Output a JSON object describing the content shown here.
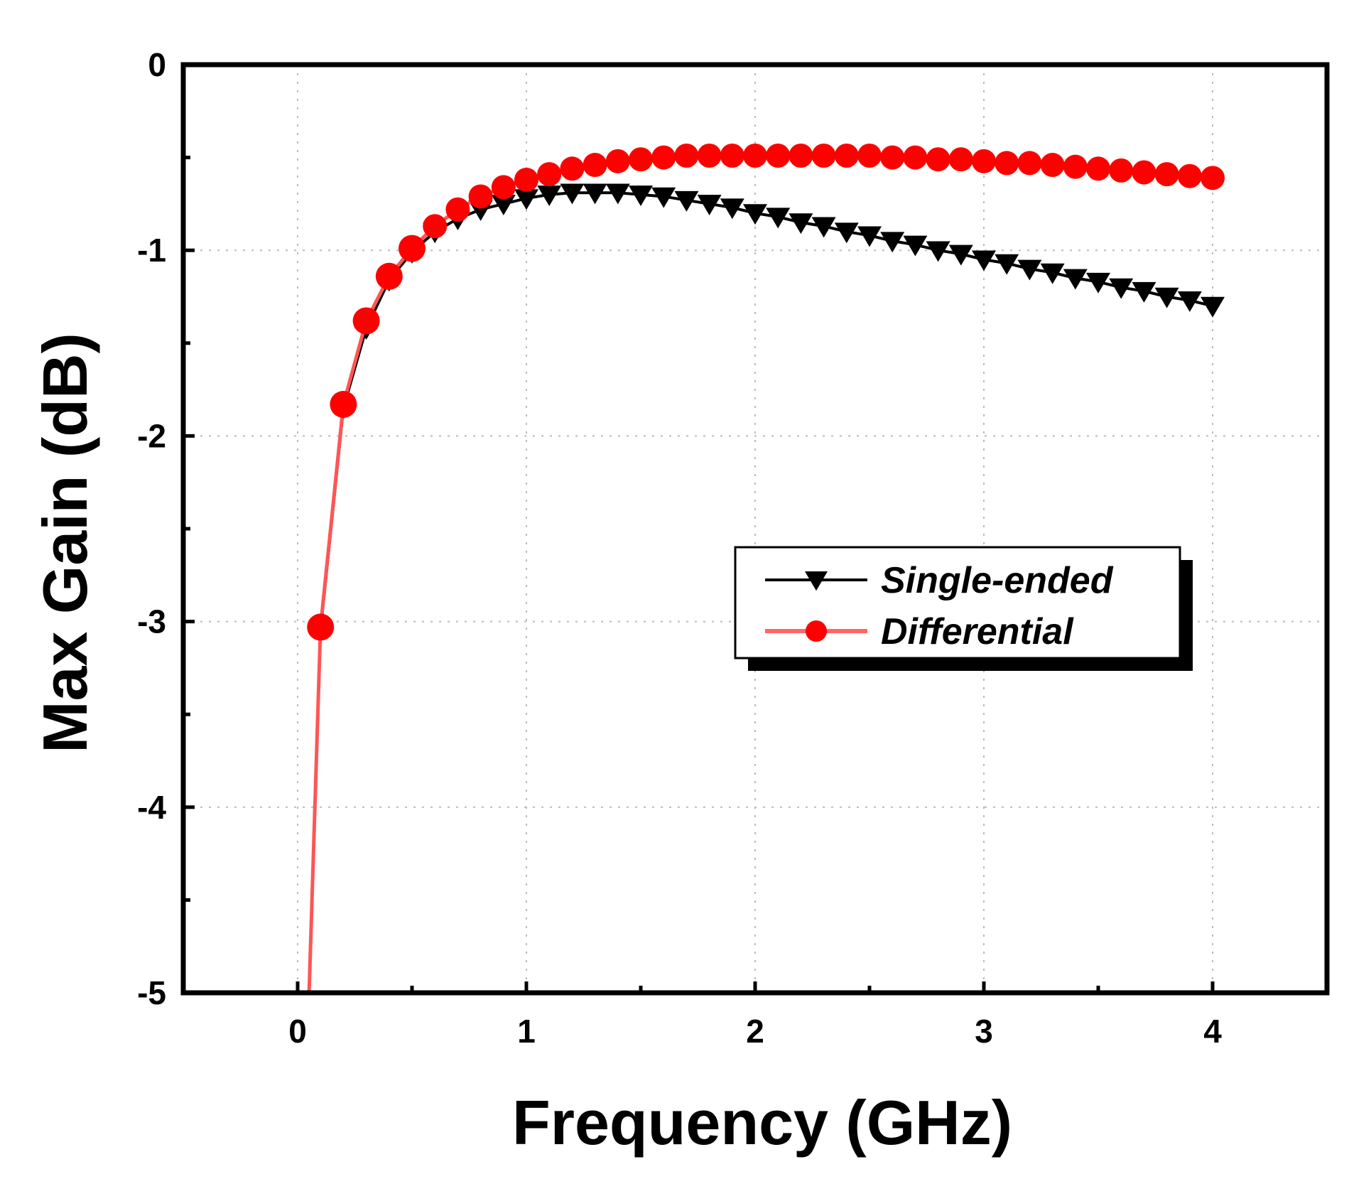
{
  "chart_data": {
    "type": "line",
    "xlabel": "Frequency (GHz)",
    "ylabel": "Max Gain (dB)",
    "xlim": [
      -0.5,
      4.5
    ],
    "ylim": [
      -5,
      0
    ],
    "x_ticks": [
      0,
      1,
      2,
      3,
      4
    ],
    "y_ticks": [
      0,
      -1,
      -2,
      -3,
      -4,
      -5
    ],
    "grid": true,
    "legend_position": "center-right",
    "series": [
      {
        "name": "Single-ended",
        "color": "#000000",
        "marker": "triangle-down",
        "x": [
          0.1,
          0.2,
          0.3,
          0.4,
          0.5,
          0.6,
          0.7,
          0.8,
          0.9,
          1.0,
          1.1,
          1.2,
          1.3,
          1.4,
          1.5,
          1.6,
          1.7,
          1.8,
          1.9,
          2.0,
          2.1,
          2.2,
          2.3,
          2.4,
          2.5,
          2.6,
          2.7,
          2.8,
          2.9,
          3.0,
          3.1,
          3.2,
          3.3,
          3.4,
          3.5,
          3.6,
          3.7,
          3.8,
          3.9,
          4.0
        ],
        "y": [
          -3.05,
          -1.85,
          -1.42,
          -1.16,
          -1.01,
          -0.9,
          -0.83,
          -0.78,
          -0.75,
          -0.72,
          -0.7,
          -0.69,
          -0.69,
          -0.69,
          -0.7,
          -0.71,
          -0.73,
          -0.75,
          -0.77,
          -0.8,
          -0.82,
          -0.85,
          -0.87,
          -0.9,
          -0.92,
          -0.95,
          -0.97,
          -1.0,
          -1.02,
          -1.05,
          -1.07,
          -1.1,
          -1.12,
          -1.15,
          -1.17,
          -1.2,
          -1.22,
          -1.25,
          -1.27,
          -1.3
        ]
      },
      {
        "name": "Differential",
        "color": "#ff0000",
        "marker": "circle",
        "x": [
          0.05,
          0.1,
          0.2,
          0.3,
          0.4,
          0.5,
          0.6,
          0.7,
          0.8,
          0.9,
          1.0,
          1.1,
          1.2,
          1.3,
          1.4,
          1.5,
          1.6,
          1.7,
          1.8,
          1.9,
          2.0,
          2.1,
          2.2,
          2.3,
          2.4,
          2.5,
          2.6,
          2.7,
          2.8,
          2.9,
          3.0,
          3.1,
          3.2,
          3.3,
          3.4,
          3.5,
          3.6,
          3.7,
          3.8,
          3.9,
          4.0
        ],
        "y": [
          -5.0,
          -3.03,
          -1.83,
          -1.38,
          -1.14,
          -0.99,
          -0.87,
          -0.78,
          -0.71,
          -0.66,
          -0.62,
          -0.59,
          -0.56,
          -0.54,
          -0.52,
          -0.51,
          -0.5,
          -0.49,
          -0.49,
          -0.49,
          -0.49,
          -0.49,
          -0.49,
          -0.49,
          -0.49,
          -0.49,
          -0.5,
          -0.5,
          -0.51,
          -0.51,
          -0.52,
          -0.53,
          -0.53,
          -0.54,
          -0.55,
          -0.56,
          -0.57,
          -0.58,
          -0.59,
          -0.6,
          -0.61
        ]
      }
    ]
  }
}
